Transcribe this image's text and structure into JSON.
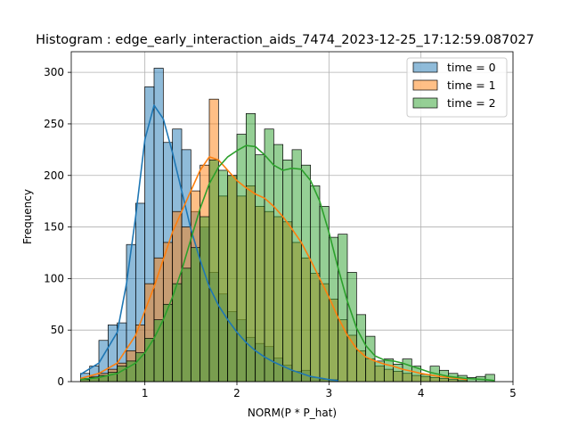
{
  "chart_data": {
    "type": "bar",
    "title": "Histogram : edge_early_interaction_aids_7474_2023-12-25_17:12:59.087027",
    "xlabel": "NORM(P * P_hat)",
    "ylabel": "Frequency",
    "xlim": [
      0.2,
      5.0
    ],
    "ylim": [
      0,
      320
    ],
    "xticks": [
      1,
      2,
      3,
      4,
      5
    ],
    "yticks": [
      0,
      50,
      100,
      150,
      200,
      250,
      300
    ],
    "grid": true,
    "legend": "top-right",
    "series": [
      {
        "name": "time = 0",
        "color": "#1f77b4",
        "bin_edges": [
          0.3,
          0.4,
          0.5,
          0.6,
          0.7,
          0.8,
          0.9,
          1.0,
          1.1,
          1.2,
          1.3,
          1.4,
          1.5,
          1.6,
          1.7,
          1.8,
          1.9,
          2.0,
          2.1,
          2.2,
          2.3,
          2.4,
          2.5,
          2.6,
          2.7,
          2.8,
          2.9,
          3.0,
          3.1
        ],
        "counts": [
          8,
          15,
          40,
          55,
          57,
          133,
          173,
          286,
          304,
          232,
          245,
          225,
          165,
          150,
          106,
          85,
          68,
          60,
          43,
          37,
          34,
          23,
          16,
          10,
          11,
          4,
          2,
          2
        ],
        "kde": [
          [
            0.3,
            7
          ],
          [
            0.5,
            18
          ],
          [
            0.7,
            48
          ],
          [
            0.8,
            95
          ],
          [
            0.9,
            160
          ],
          [
            1.0,
            235
          ],
          [
            1.1,
            268
          ],
          [
            1.2,
            255
          ],
          [
            1.3,
            222
          ],
          [
            1.4,
            185
          ],
          [
            1.5,
            148
          ],
          [
            1.6,
            118
          ],
          [
            1.7,
            92
          ],
          [
            1.8,
            74
          ],
          [
            1.9,
            60
          ],
          [
            2.0,
            48
          ],
          [
            2.1,
            38
          ],
          [
            2.2,
            30
          ],
          [
            2.3,
            24
          ],
          [
            2.4,
            19
          ],
          [
            2.5,
            15
          ],
          [
            2.6,
            11
          ],
          [
            2.7,
            8
          ],
          [
            2.8,
            5
          ],
          [
            3.0,
            2
          ],
          [
            3.1,
            1
          ]
        ]
      },
      {
        "name": "time = 1",
        "color": "#ff7f0e",
        "bin_edges": [
          0.3,
          0.4,
          0.5,
          0.6,
          0.7,
          0.8,
          0.9,
          1.0,
          1.1,
          1.2,
          1.3,
          1.4,
          1.5,
          1.6,
          1.7,
          1.8,
          1.9,
          2.0,
          2.1,
          2.2,
          2.3,
          2.4,
          2.5,
          2.6,
          2.7,
          2.8,
          2.9,
          3.0,
          3.1,
          3.2,
          3.3,
          3.4,
          3.5,
          3.6,
          3.7,
          3.8,
          3.9,
          4.0,
          4.1,
          4.2,
          4.3,
          4.4,
          4.5
        ],
        "counts": [
          3,
          5,
          8,
          12,
          18,
          30,
          55,
          95,
          120,
          135,
          165,
          150,
          185,
          210,
          274,
          180,
          200,
          180,
          190,
          170,
          165,
          160,
          155,
          135,
          120,
          105,
          95,
          80,
          60,
          45,
          30,
          22,
          15,
          12,
          10,
          8,
          6,
          5,
          4,
          3,
          2,
          1
        ],
        "kde": [
          [
            0.3,
            3
          ],
          [
            0.5,
            8
          ],
          [
            0.7,
            18
          ],
          [
            0.9,
            45
          ],
          [
            1.1,
            92
          ],
          [
            1.3,
            145
          ],
          [
            1.5,
            185
          ],
          [
            1.6,
            205
          ],
          [
            1.7,
            218
          ],
          [
            1.8,
            215
          ],
          [
            1.9,
            205
          ],
          [
            2.0,
            195
          ],
          [
            2.1,
            188
          ],
          [
            2.2,
            182
          ],
          [
            2.3,
            178
          ],
          [
            2.4,
            170
          ],
          [
            2.5,
            160
          ],
          [
            2.6,
            148
          ],
          [
            2.7,
            135
          ],
          [
            2.8,
            118
          ],
          [
            2.9,
            100
          ],
          [
            3.0,
            82
          ],
          [
            3.1,
            62
          ],
          [
            3.2,
            45
          ],
          [
            3.3,
            32
          ],
          [
            3.4,
            24
          ],
          [
            3.5,
            20
          ],
          [
            3.6,
            17
          ],
          [
            3.7,
            15
          ],
          [
            3.8,
            12
          ],
          [
            3.9,
            10
          ],
          [
            4.0,
            8
          ],
          [
            4.2,
            5
          ],
          [
            4.4,
            3
          ],
          [
            4.5,
            2
          ]
        ]
      },
      {
        "name": "time = 2",
        "color": "#2ca02c",
        "bin_edges": [
          0.3,
          0.4,
          0.5,
          0.6,
          0.7,
          0.8,
          0.9,
          1.0,
          1.1,
          1.2,
          1.3,
          1.4,
          1.5,
          1.6,
          1.7,
          1.8,
          1.9,
          2.0,
          2.1,
          2.2,
          2.3,
          2.4,
          2.5,
          2.6,
          2.7,
          2.8,
          2.9,
          3.0,
          3.1,
          3.2,
          3.3,
          3.4,
          3.5,
          3.6,
          3.7,
          3.8,
          3.9,
          4.0,
          4.1,
          4.2,
          4.3,
          4.4,
          4.5,
          4.6,
          4.7,
          4.8
        ],
        "counts": [
          2,
          4,
          6,
          9,
          15,
          20,
          28,
          42,
          60,
          75,
          95,
          110,
          130,
          160,
          215,
          205,
          200,
          240,
          260,
          220,
          245,
          230,
          215,
          225,
          210,
          190,
          170,
          140,
          143,
          106,
          65,
          44,
          20,
          22,
          17,
          22,
          15,
          7,
          15,
          11,
          8,
          6,
          4,
          5,
          7
        ],
        "kde": [
          [
            0.3,
            2
          ],
          [
            0.5,
            4
          ],
          [
            0.7,
            8
          ],
          [
            0.9,
            18
          ],
          [
            1.0,
            28
          ],
          [
            1.1,
            42
          ],
          [
            1.2,
            60
          ],
          [
            1.3,
            82
          ],
          [
            1.4,
            108
          ],
          [
            1.5,
            138
          ],
          [
            1.6,
            168
          ],
          [
            1.7,
            192
          ],
          [
            1.8,
            208
          ],
          [
            1.9,
            218
          ],
          [
            2.0,
            224
          ],
          [
            2.1,
            229
          ],
          [
            2.2,
            228
          ],
          [
            2.3,
            220
          ],
          [
            2.4,
            210
          ],
          [
            2.5,
            205
          ],
          [
            2.6,
            207
          ],
          [
            2.7,
            206
          ],
          [
            2.8,
            195
          ],
          [
            2.9,
            175
          ],
          [
            3.0,
            145
          ],
          [
            3.1,
            110
          ],
          [
            3.2,
            78
          ],
          [
            3.3,
            52
          ],
          [
            3.4,
            35
          ],
          [
            3.5,
            25
          ],
          [
            3.6,
            21
          ],
          [
            3.7,
            20
          ],
          [
            3.8,
            18
          ],
          [
            3.9,
            15
          ],
          [
            4.0,
            12
          ],
          [
            4.1,
            9
          ],
          [
            4.2,
            7
          ],
          [
            4.3,
            5
          ],
          [
            4.5,
            3
          ],
          [
            4.7,
            2
          ],
          [
            4.8,
            1
          ]
        ]
      }
    ]
  }
}
